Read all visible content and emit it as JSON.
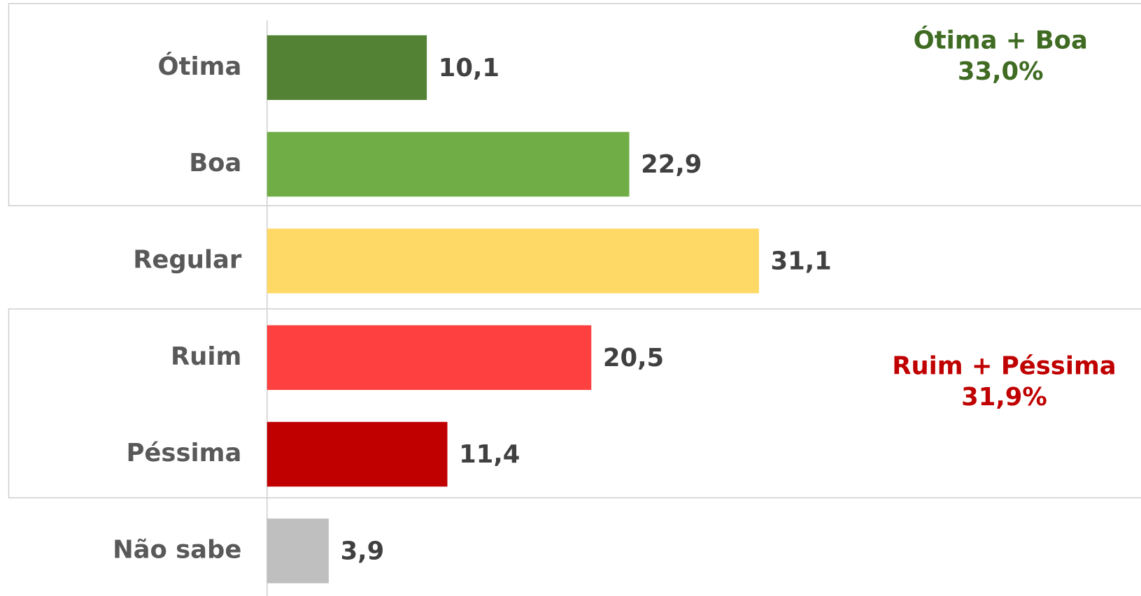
{
  "chart_data": {
    "type": "bar",
    "orientation": "horizontal",
    "categories": [
      "Ótima",
      "Boa",
      "Regular",
      "Ruim",
      "Péssima",
      "Não sabe"
    ],
    "values": [
      10.1,
      22.9,
      31.1,
      20.5,
      11.4,
      3.9
    ],
    "value_labels": [
      "10,1",
      "22,9",
      "31,1",
      "20,5",
      "11,4",
      "3,9"
    ],
    "colors": [
      "#548235",
      "#70ad47",
      "#ffd966",
      "#ff4040",
      "#c00000",
      "#bfbfbf"
    ],
    "annotations": [
      {
        "lines": [
          "Ótima + Boa",
          "33,0%"
        ],
        "color": "#3f6b22"
      },
      {
        "lines": [
          "Ruim + Péssima",
          "31,9%"
        ],
        "color": "#c00000"
      }
    ]
  }
}
